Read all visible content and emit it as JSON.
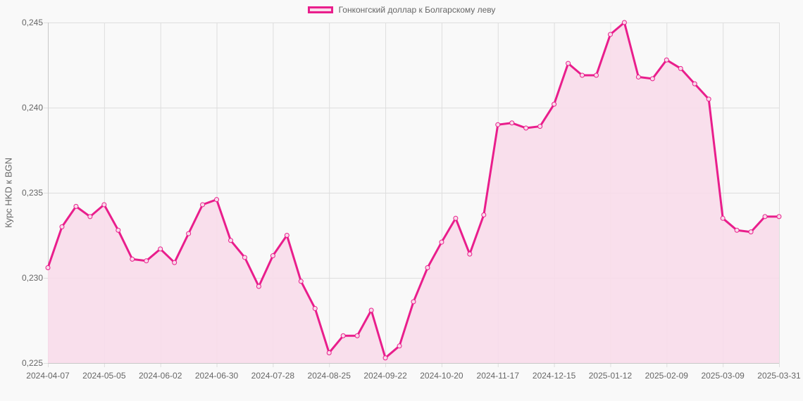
{
  "legend": {
    "label": "Гонконгский доллар к Болгарскому леву",
    "line_color": "#e91e8c",
    "fill_color": "#f8dbea"
  },
  "chart_data": {
    "type": "area",
    "title": "",
    "xlabel": "",
    "ylabel": "Курс HKD к BGN",
    "ylim": [
      0.225,
      0.245
    ],
    "grid": true,
    "legend_position": "top",
    "y_ticks": [
      "0,225",
      "0,230",
      "0,235",
      "0,240",
      "0,245"
    ],
    "x_ticks": [
      "2024-04-07",
      "2024-05-05",
      "2024-06-02",
      "2024-06-30",
      "2024-07-28",
      "2024-08-25",
      "2024-09-22",
      "2024-10-20",
      "2024-11-17",
      "2024-12-15",
      "2025-01-12",
      "2025-02-09",
      "2025-03-09",
      "2025-03-31"
    ],
    "series": [
      {
        "name": "Гонконгский доллар к Болгарскому леву",
        "values": [
          0.2306,
          0.233,
          0.2342,
          0.2336,
          0.2343,
          0.2328,
          0.2311,
          0.231,
          0.2317,
          0.2309,
          0.2326,
          0.2343,
          0.2346,
          0.2322,
          0.2312,
          0.2295,
          0.2313,
          0.2325,
          0.2298,
          0.2282,
          0.2256,
          0.2266,
          0.2266,
          0.2281,
          0.2253,
          0.226,
          0.2286,
          0.2306,
          0.2321,
          0.2335,
          0.2314,
          0.2337,
          0.239,
          0.2391,
          0.2388,
          0.2389,
          0.2402,
          0.2426,
          0.2419,
          0.2419,
          0.2443,
          0.245,
          0.2418,
          0.2417,
          0.2428,
          0.2423,
          0.2414,
          0.2405,
          0.2335,
          0.2328,
          0.2327,
          0.2336,
          0.2336
        ]
      }
    ]
  }
}
